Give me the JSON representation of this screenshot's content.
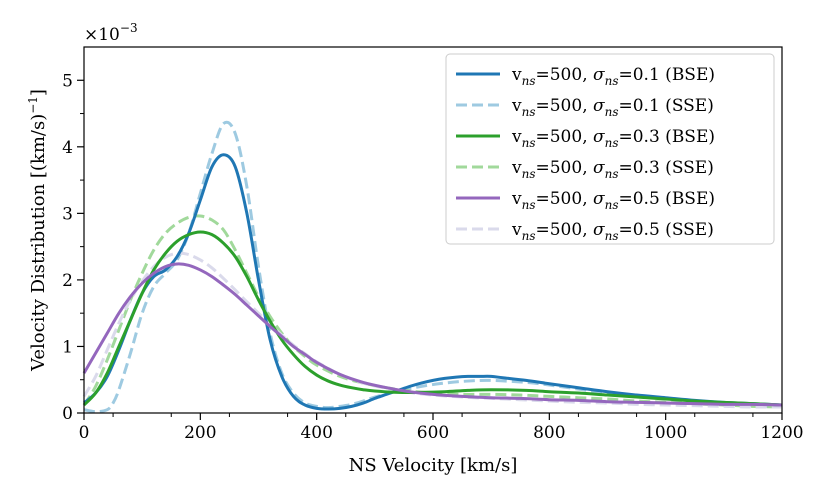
{
  "chart_data": {
    "type": "line",
    "xlabel": "NS Velocity [km/s]",
    "ylabel": "Velocity Distribution [(km/s)",
    "ylabel_sup": "−1",
    "ylabel_tail": "]",
    "y_scale_label": "×10",
    "y_scale_exp": "−3",
    "xlim": [
      0,
      1200
    ],
    "ylim": [
      0,
      5.5
    ],
    "x_ticks": [
      0,
      200,
      400,
      600,
      800,
      1000,
      1200
    ],
    "x_tick_labels": [
      "0",
      "200",
      "400",
      "600",
      "800",
      "1000",
      "1200"
    ],
    "y_ticks": [
      0,
      1,
      2,
      3,
      4,
      5
    ],
    "y_tick_labels": [
      "0",
      "1",
      "2",
      "3",
      "4",
      "5"
    ],
    "grid": false,
    "legend_position": "top-right",
    "series": [
      {
        "name": "v=500, σ=0.1 (BSE)",
        "label_parts": [
          "v",
          "ns",
          "=500, ",
          "σ",
          "ns",
          "=0.1 (BSE)"
        ],
        "color": "#1f77b4",
        "dash": "solid",
        "x": [
          0,
          20,
          40,
          60,
          80,
          100,
          120,
          140,
          160,
          180,
          200,
          220,
          240,
          260,
          280,
          300,
          320,
          340,
          360,
          380,
          400,
          420,
          440,
          460,
          480,
          500,
          520,
          540,
          560,
          580,
          600,
          620,
          640,
          660,
          680,
          700,
          720,
          760,
          800,
          850,
          900,
          950,
          1000,
          1050,
          1100,
          1150,
          1200
        ],
        "y": [
          0.15,
          0.3,
          0.55,
          0.95,
          1.4,
          1.8,
          2.05,
          2.15,
          2.35,
          2.7,
          3.2,
          3.7,
          3.88,
          3.7,
          3.0,
          2.0,
          1.1,
          0.55,
          0.25,
          0.12,
          0.07,
          0.06,
          0.07,
          0.1,
          0.15,
          0.22,
          0.28,
          0.34,
          0.4,
          0.45,
          0.49,
          0.52,
          0.54,
          0.55,
          0.55,
          0.55,
          0.53,
          0.49,
          0.44,
          0.38,
          0.32,
          0.27,
          0.23,
          0.19,
          0.16,
          0.14,
          0.12
        ]
      },
      {
        "name": "v=500, σ=0.1 (SSE)",
        "label_parts": [
          "v",
          "ns",
          "=500, ",
          "σ",
          "ns",
          "=0.1 (SSE)"
        ],
        "color": "#9ecae1",
        "dash": "dashed",
        "x": [
          0,
          20,
          40,
          50,
          60,
          80,
          100,
          120,
          140,
          160,
          180,
          200,
          220,
          240,
          260,
          280,
          300,
          320,
          340,
          360,
          380,
          400,
          420,
          440,
          460,
          480,
          500,
          540,
          580,
          620,
          660,
          700,
          760,
          800,
          850,
          900,
          950,
          1000,
          1050,
          1100,
          1150,
          1200
        ],
        "y": [
          0.05,
          0.02,
          0.05,
          0.15,
          0.35,
          0.9,
          1.5,
          1.9,
          2.1,
          2.3,
          2.7,
          3.3,
          3.9,
          4.35,
          4.2,
          3.4,
          2.2,
          1.2,
          0.6,
          0.3,
          0.15,
          0.1,
          0.08,
          0.1,
          0.13,
          0.18,
          0.24,
          0.33,
          0.4,
          0.45,
          0.48,
          0.49,
          0.46,
          0.42,
          0.36,
          0.3,
          0.25,
          0.21,
          0.17,
          0.14,
          0.11,
          0.09
        ]
      },
      {
        "name": "v=500, σ=0.3 (BSE)",
        "label_parts": [
          "v",
          "ns",
          "=500, ",
          "σ",
          "ns",
          "=0.3 (BSE)"
        ],
        "color": "#2ca02c",
        "dash": "solid",
        "x": [
          0,
          20,
          40,
          60,
          80,
          100,
          120,
          140,
          160,
          180,
          200,
          220,
          240,
          260,
          280,
          300,
          320,
          340,
          360,
          380,
          400,
          420,
          440,
          460,
          480,
          500,
          540,
          580,
          620,
          660,
          700,
          760,
          800,
          850,
          900,
          950,
          1000,
          1050,
          1100,
          1150,
          1200
        ],
        "y": [
          0.12,
          0.3,
          0.6,
          1.0,
          1.4,
          1.8,
          2.15,
          2.4,
          2.58,
          2.68,
          2.72,
          2.68,
          2.55,
          2.35,
          2.05,
          1.7,
          1.38,
          1.1,
          0.88,
          0.7,
          0.57,
          0.48,
          0.42,
          0.38,
          0.35,
          0.33,
          0.31,
          0.31,
          0.32,
          0.34,
          0.35,
          0.34,
          0.32,
          0.3,
          0.27,
          0.24,
          0.21,
          0.18,
          0.16,
          0.14,
          0.12
        ]
      },
      {
        "name": "v=500, σ=0.3 (SSE)",
        "label_parts": [
          "v",
          "ns",
          "=500, ",
          "σ",
          "ns",
          "=0.3 (SSE)"
        ],
        "color": "#a1d99b",
        "dash": "dashed",
        "x": [
          0,
          20,
          40,
          60,
          80,
          100,
          120,
          140,
          160,
          180,
          200,
          220,
          240,
          260,
          280,
          300,
          320,
          340,
          360,
          380,
          400,
          440,
          480,
          520,
          560,
          600,
          650,
          700,
          750,
          800,
          850,
          900,
          950,
          1000,
          1050,
          1100,
          1150,
          1200
        ],
        "y": [
          0.12,
          0.4,
          0.8,
          1.25,
          1.7,
          2.1,
          2.45,
          2.7,
          2.85,
          2.94,
          2.96,
          2.9,
          2.75,
          2.45,
          2.1,
          1.75,
          1.45,
          1.2,
          1.0,
          0.85,
          0.72,
          0.55,
          0.45,
          0.38,
          0.33,
          0.3,
          0.28,
          0.28,
          0.27,
          0.25,
          0.23,
          0.21,
          0.18,
          0.16,
          0.14,
          0.12,
          0.1,
          0.09
        ]
      },
      {
        "name": "v=500, σ=0.5 (BSE)",
        "label_parts": [
          "v",
          "ns",
          "=500, ",
          "σ",
          "ns",
          "=0.5 (BSE)"
        ],
        "color": "#9467bd",
        "dash": "solid",
        "x": [
          0,
          20,
          40,
          60,
          80,
          100,
          120,
          140,
          160,
          180,
          200,
          220,
          240,
          260,
          280,
          300,
          320,
          340,
          360,
          380,
          400,
          440,
          480,
          520,
          560,
          600,
          650,
          700,
          750,
          800,
          850,
          900,
          950,
          1000,
          1050,
          1100,
          1150,
          1200
        ],
        "y": [
          0.6,
          0.9,
          1.2,
          1.5,
          1.75,
          1.95,
          2.1,
          2.2,
          2.24,
          2.22,
          2.15,
          2.05,
          1.92,
          1.78,
          1.62,
          1.46,
          1.3,
          1.15,
          1.0,
          0.88,
          0.76,
          0.58,
          0.46,
          0.38,
          0.32,
          0.28,
          0.25,
          0.23,
          0.22,
          0.2,
          0.19,
          0.17,
          0.16,
          0.15,
          0.14,
          0.13,
          0.13,
          0.12
        ]
      },
      {
        "name": "v=500, σ=0.5 (SSE)",
        "label_parts": [
          "v",
          "ns",
          "=500, ",
          "σ",
          "ns",
          "=0.5 (SSE)"
        ],
        "color": "#dadaeb",
        "dash": "dashed",
        "x": [
          0,
          20,
          40,
          60,
          80,
          100,
          120,
          140,
          160,
          180,
          200,
          220,
          240,
          260,
          280,
          300,
          320,
          340,
          360,
          380,
          400,
          440,
          480,
          520,
          560,
          600,
          650,
          700,
          750,
          800,
          850,
          900,
          950,
          1000,
          1050,
          1100,
          1150,
          1200
        ],
        "y": [
          0.25,
          0.55,
          0.95,
          1.35,
          1.7,
          1.98,
          2.2,
          2.34,
          2.4,
          2.38,
          2.3,
          2.18,
          2.02,
          1.85,
          1.67,
          1.5,
          1.33,
          1.17,
          1.02,
          0.89,
          0.77,
          0.58,
          0.45,
          0.37,
          0.31,
          0.27,
          0.24,
          0.22,
          0.2,
          0.18,
          0.16,
          0.15,
          0.13,
          0.12,
          0.11,
          0.1,
          0.09,
          0.09
        ]
      }
    ]
  }
}
